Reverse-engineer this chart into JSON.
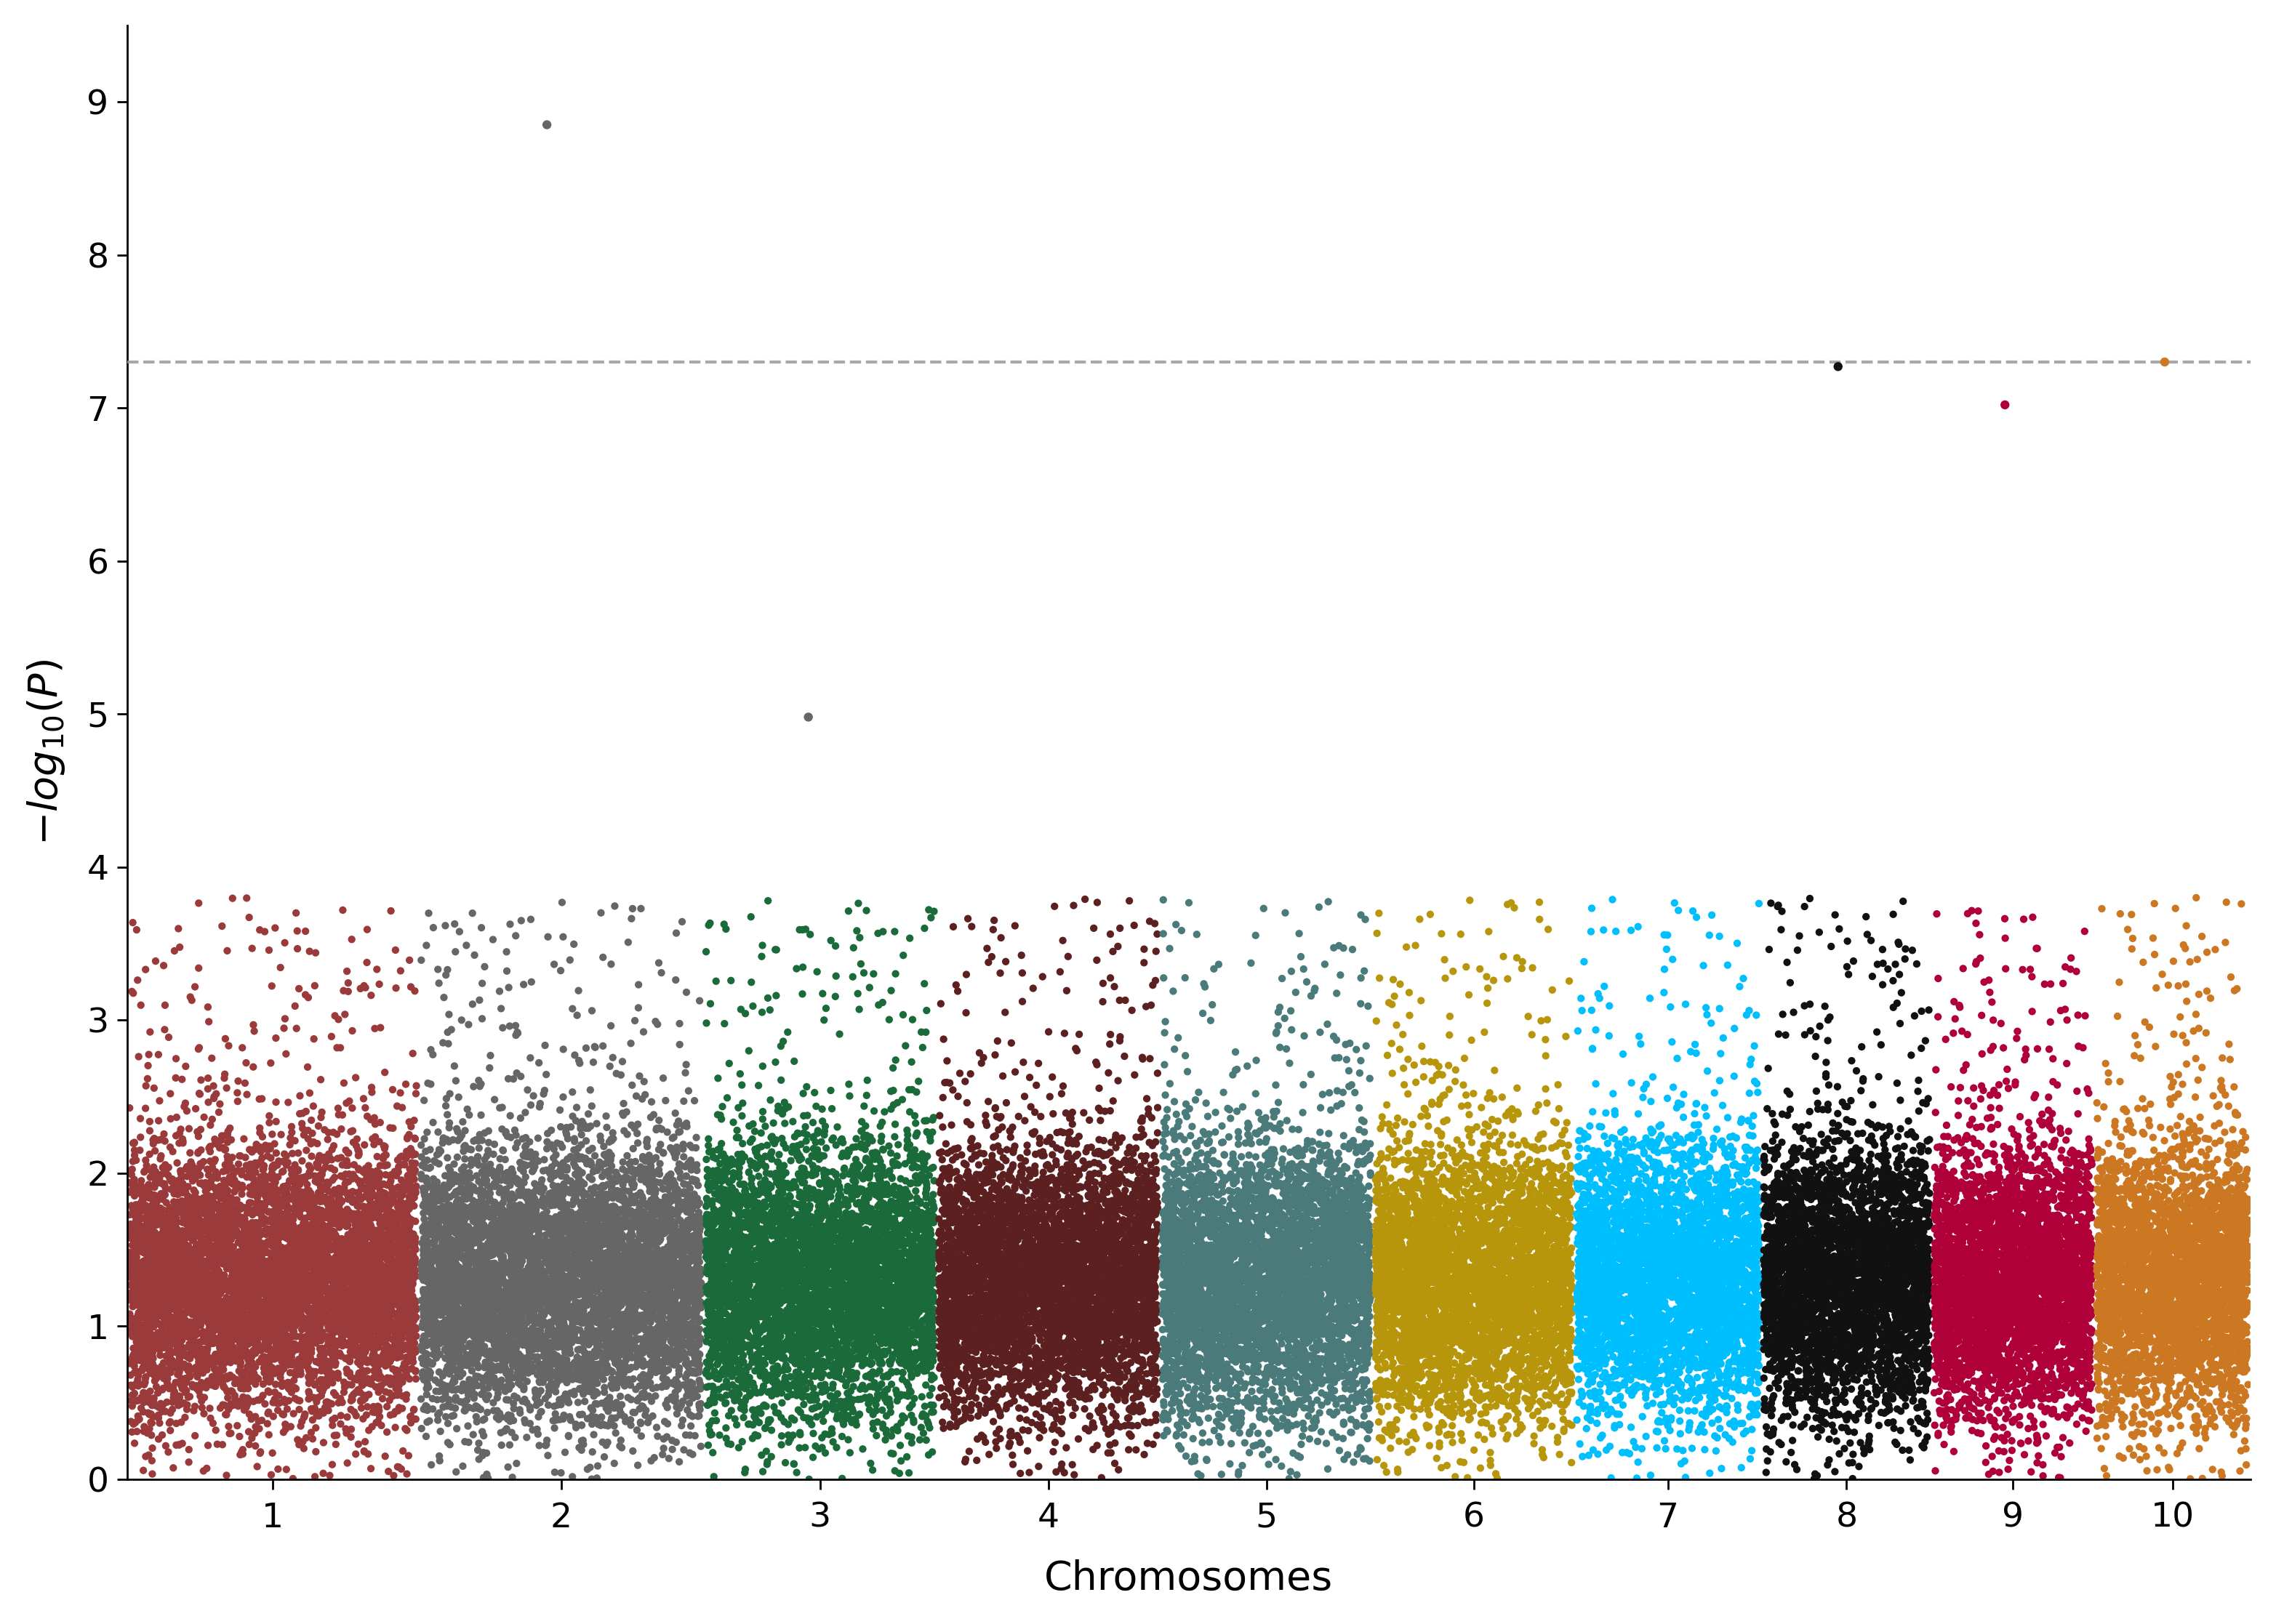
{
  "chromosomes": [
    1,
    2,
    3,
    4,
    5,
    6,
    7,
    8,
    9,
    10
  ],
  "chr_colors": [
    "#9B3A3A",
    "#666666",
    "#1B6B3A",
    "#5C2020",
    "#4A7A7A",
    "#B8960C",
    "#00BFFF",
    "#111111",
    "#B0003A",
    "#CC7722"
  ],
  "significance_line": 7.301,
  "ylabel": "$-log_{10}(P)$",
  "xlabel": "Chromosomes",
  "ylim": [
    0,
    9.5
  ],
  "yticks": [
    0,
    1,
    2,
    3,
    4,
    5,
    6,
    7,
    8,
    9
  ],
  "background_color": "#ffffff",
  "seed": 42,
  "special_points": [
    {
      "chr": 2,
      "y": 8.85,
      "color": "#666666"
    },
    {
      "chr": 3,
      "y": 4.98,
      "color": "#666666"
    },
    {
      "chr": 8,
      "y": 7.27,
      "color": "#111111"
    },
    {
      "chr": 9,
      "y": 7.02,
      "color": "#B0003A"
    },
    {
      "chr": 10,
      "y": 7.3,
      "color": "#CC7722"
    }
  ],
  "chr_sizes": [
    248,
    242,
    198,
    190,
    181,
    171,
    159,
    145,
    138,
    133
  ]
}
